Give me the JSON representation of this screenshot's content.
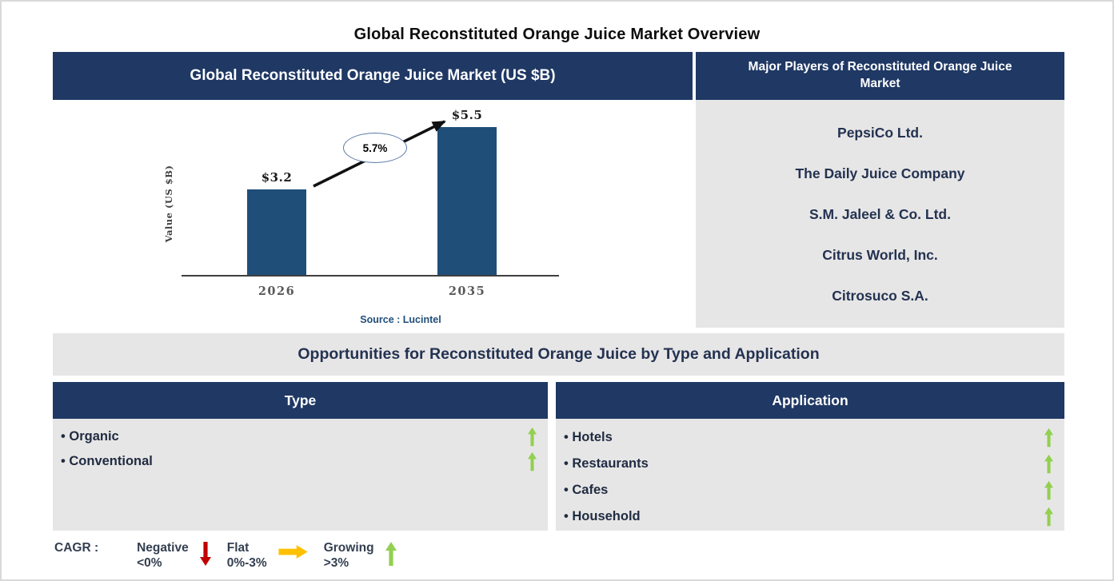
{
  "page": {
    "title": "Global Reconstituted Orange Juice Market Overview"
  },
  "chart_data": {
    "type": "bar",
    "title": "Global Reconstituted Orange Juice Market (US $B)",
    "categories": [
      "2026",
      "2035"
    ],
    "values": [
      3.2,
      5.5
    ],
    "value_labels": [
      "$3.2",
      "$5.5"
    ],
    "xlabel": "",
    "ylabel": "Value (US $B)",
    "ylim": [
      0,
      6.5
    ],
    "grid": false,
    "legend_position": "none",
    "annotation": "5.7%",
    "source": "Source : Lucintel",
    "bar_color": "#1F4E79"
  },
  "players": {
    "header": "Major Players of Reconstituted Orange Juice Market",
    "items": [
      "PepsiCo Ltd.",
      "The Daily Juice Company",
      "S.M. Jaleel & Co. Ltd.",
      "Citrus World, Inc.",
      "Citrosuco S.A."
    ]
  },
  "opportunities": {
    "title": "Opportunities for Reconstituted Orange Juice by Type and Application",
    "type_table": {
      "header": "Type",
      "items": [
        {
          "label": "Organic",
          "trend": "growing"
        },
        {
          "label": "Conventional",
          "trend": "growing"
        }
      ]
    },
    "application_table": {
      "header": "Application",
      "items": [
        {
          "label": "Hotels",
          "trend": "growing"
        },
        {
          "label": "Restaurants",
          "trend": "growing"
        },
        {
          "label": "Cafes",
          "trend": "growing"
        },
        {
          "label": "Household",
          "trend": "growing"
        }
      ]
    }
  },
  "legend": {
    "prefix": "CAGR :",
    "items": [
      {
        "label": "Negative",
        "range": "<0%",
        "trend": "negative"
      },
      {
        "label": "Flat",
        "range": "0%-3%",
        "trend": "flat"
      },
      {
        "label": "Growing",
        "range": ">3%",
        "trend": "growing"
      }
    ]
  },
  "colors": {
    "header_navy": "#1F3864",
    "bar_blue": "#1F4E79",
    "panel_gray": "#E7E6E6",
    "text_navy": "#233251",
    "legend_text": "#333F50",
    "growing_green": "#92D050",
    "negative_red": "#C00000",
    "flat_orange": "#FFC000",
    "source_blue": "#1F4E79"
  }
}
